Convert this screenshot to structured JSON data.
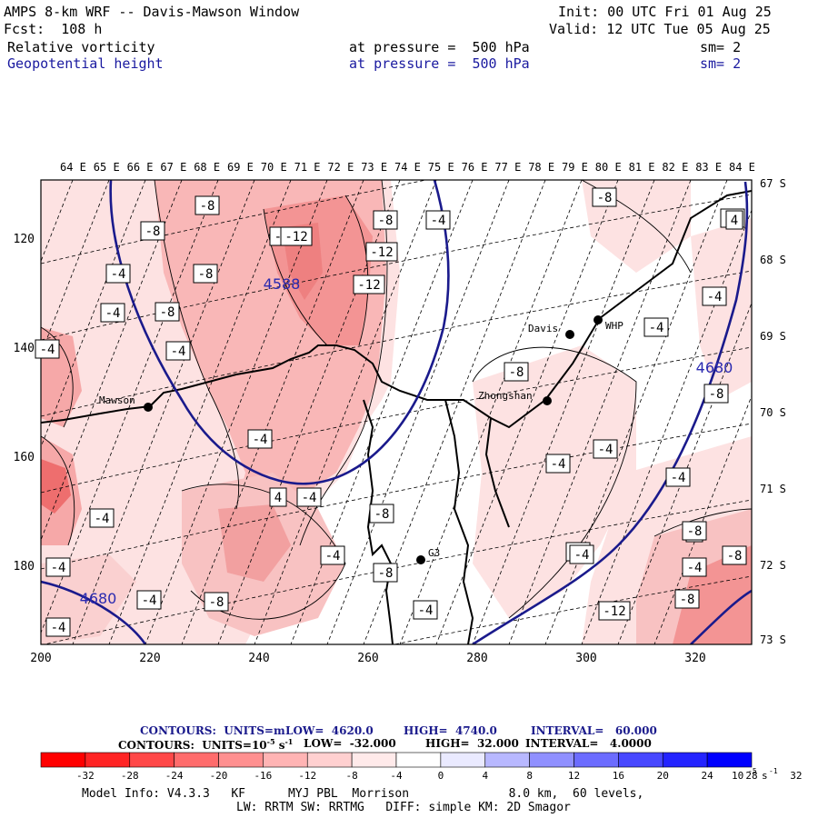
{
  "header": {
    "title": "AMPS 8-km WRF -- Davis-Mawson Window",
    "forecast": "Fcst:  108 h",
    "init": "Init: 00 UTC Fri 01 Aug 25",
    "valid": "Valid: 12 UTC Tue 05 Aug 25",
    "field1": {
      "name": "Relative vorticity",
      "level": "at pressure =  500 hPa",
      "sm": "sm= 2"
    },
    "field2": {
      "name": "Geopotential height",
      "level": "at pressure =  500 hPa",
      "sm": "sm= 2"
    }
  },
  "map": {
    "top_labels": [
      "64 E",
      "65 E",
      "66 E",
      "67 E",
      "68 E",
      "69 E",
      "70 E",
      "71 E",
      "72 E",
      "73 E",
      "74 E",
      "75 E",
      "76 E",
      "77 E",
      "78 E",
      "79 E",
      "80 E",
      "81 E",
      "82 E",
      "83 E",
      "84 E"
    ],
    "right_labels": [
      "67 S",
      "68 S",
      "69 S",
      "70 S",
      "71 S",
      "72 S",
      "73 S"
    ],
    "x_ticks": [
      "200",
      "220",
      "240",
      "260",
      "280",
      "300",
      "320"
    ],
    "y_ticks": [
      "120",
      "140",
      "160",
      "180"
    ],
    "stations": [
      {
        "name": "Mawson"
      },
      {
        "name": "Davis"
      },
      {
        "name": "WHP"
      },
      {
        "name": "Zhongshan"
      },
      {
        "name": "G3"
      }
    ],
    "height_labels": [
      "4588",
      "4680",
      "4680"
    ],
    "vort_labels": [
      "-8",
      "-8",
      "-8",
      "-12",
      "-8",
      "-4",
      "-8",
      "-12",
      "-12",
      "-8",
      "-4",
      "-4",
      "-8",
      "-4",
      "-4",
      "-8",
      "-4",
      "-4",
      "-8",
      "-4",
      "-4",
      "-4",
      "-4",
      "4",
      "-4",
      "-8",
      "-4",
      "-8",
      "-4",
      "4",
      "-8",
      "-4",
      "-4",
      "-8",
      "-8",
      "-4",
      "-12",
      "-4",
      "-4",
      "-4",
      "-8",
      "-8",
      "4",
      "-4"
    ],
    "colors": {
      "neg_strong": "#ff0000",
      "neg_mid": "#f59a9a",
      "neg_light": "#fdd6d6",
      "height_contour": "#1a1a8c",
      "coast": "#000000"
    }
  },
  "contours": {
    "line1": {
      "label": "CONTOURS:  UNITS=m",
      "low": "LOW=  4620.0",
      "high": "HIGH=  4740.0",
      "interval": "INTERVAL=   60.000"
    },
    "line2": {
      "label": "CONTOURS:  UNITS=10",
      "unit_exp": "-5",
      "unit_tail": " s",
      "unit_tail_exp": "-1",
      "low": "LOW=  -32.000",
      "high": "HIGH=  32.000",
      "interval": "INTERVAL=   4.0000"
    }
  },
  "colorbar": {
    "labels": [
      "-32",
      "-28",
      "-24",
      "-20",
      "-16",
      "-12",
      "-8",
      "-4",
      "0",
      "4",
      "8",
      "12",
      "16",
      "20",
      "24",
      "28",
      "32"
    ],
    "unit_base": "10",
    "unit_exp": "-5",
    "unit_tail": "s",
    "unit_tail_exp": "-1",
    "colors": [
      "#ff0000",
      "#ff2424",
      "#ff4848",
      "#ff6c6c",
      "#ff9090",
      "#ffb4b4",
      "#ffd0d0",
      "#ffeaea",
      "#ffffff",
      "#ffffff",
      "#eaeaff",
      "#b8b8ff",
      "#9090ff",
      "#6c6cff",
      "#4848ff",
      "#2424ff",
      "#0000ff"
    ]
  },
  "footer": {
    "line1": "Model Info: V4.3.3   KF      MYJ PBL  Morrison              8.0 km,  60 levels,",
    "line2": "LW: RRTM SW: RRTMG   DIFF: simple KM: 2D Smagor"
  }
}
